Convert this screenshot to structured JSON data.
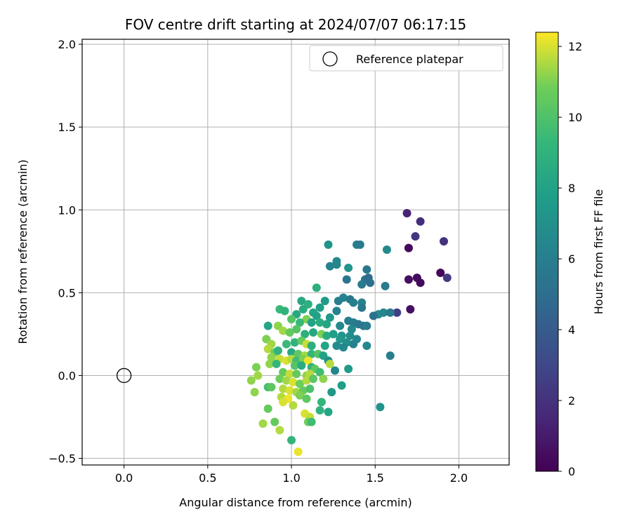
{
  "chart_data": {
    "type": "scatter",
    "title": "FOV centre drift starting at 2024/07/07 06:17:15",
    "xlabel": "Angular distance from reference (arcmin)",
    "ylabel": "Rotation from reference (arcmin)",
    "xlim": [
      -0.25,
      2.3
    ],
    "ylim": [
      -0.54,
      2.03
    ],
    "x_ticks": [
      0.0,
      0.5,
      1.0,
      1.5,
      2.0
    ],
    "x_tick_labels": [
      "0.0",
      "0.5",
      "1.0",
      "1.5",
      "2.0"
    ],
    "y_ticks": [
      -0.5,
      0.0,
      0.5,
      1.0,
      1.5,
      2.0
    ],
    "y_tick_labels": [
      "−0.5",
      "0.0",
      "0.5",
      "1.0",
      "1.5",
      "2.0"
    ],
    "grid": true,
    "legend": {
      "placement": "top-right",
      "entries": [
        "Reference platepar"
      ]
    },
    "reference_point": {
      "x": 0.0,
      "y": 0.0
    },
    "colorbar": {
      "label": "Hours from first FF file",
      "colormap": "viridis",
      "range": [
        0,
        12.4
      ],
      "ticks": [
        0,
        2,
        4,
        6,
        8,
        10,
        12
      ],
      "tick_labels": [
        "0",
        "2",
        "4",
        "6",
        "8",
        "10",
        "12"
      ]
    },
    "points": [
      {
        "x": 1.69,
        "y": 0.98,
        "c": 1.4
      },
      {
        "x": 1.77,
        "y": 0.93,
        "c": 1.8
      },
      {
        "x": 1.74,
        "y": 0.84,
        "c": 2.2
      },
      {
        "x": 1.91,
        "y": 0.81,
        "c": 2.0
      },
      {
        "x": 1.7,
        "y": 0.77,
        "c": 0.3
      },
      {
        "x": 1.93,
        "y": 0.59,
        "c": 2.4
      },
      {
        "x": 1.89,
        "y": 0.62,
        "c": 0.2
      },
      {
        "x": 1.75,
        "y": 0.59,
        "c": 0.4
      },
      {
        "x": 1.7,
        "y": 0.58,
        "c": 0.5
      },
      {
        "x": 1.77,
        "y": 0.56,
        "c": 0.3
      },
      {
        "x": 1.71,
        "y": 0.4,
        "c": 0.6
      },
      {
        "x": 1.63,
        "y": 0.38,
        "c": 2.6
      },
      {
        "x": 1.22,
        "y": 0.79,
        "c": 7.2
      },
      {
        "x": 1.39,
        "y": 0.79,
        "c": 6.0
      },
      {
        "x": 1.41,
        "y": 0.79,
        "c": 5.8
      },
      {
        "x": 1.57,
        "y": 0.76,
        "c": 6.6
      },
      {
        "x": 1.27,
        "y": 0.69,
        "c": 6.6
      },
      {
        "x": 1.23,
        "y": 0.66,
        "c": 6.2
      },
      {
        "x": 1.27,
        "y": 0.67,
        "c": 6.4
      },
      {
        "x": 1.34,
        "y": 0.65,
        "c": 7.2
      },
      {
        "x": 1.45,
        "y": 0.64,
        "c": 5.6
      },
      {
        "x": 1.44,
        "y": 0.58,
        "c": 5.2
      },
      {
        "x": 1.46,
        "y": 0.59,
        "c": 4.8
      },
      {
        "x": 1.33,
        "y": 0.58,
        "c": 5.4
      },
      {
        "x": 1.42,
        "y": 0.55,
        "c": 5.8
      },
      {
        "x": 1.47,
        "y": 0.56,
        "c": 5.2
      },
      {
        "x": 1.56,
        "y": 0.54,
        "c": 5.8
      },
      {
        "x": 1.15,
        "y": 0.53,
        "c": 8.8
      },
      {
        "x": 1.28,
        "y": 0.45,
        "c": 6.0
      },
      {
        "x": 1.31,
        "y": 0.47,
        "c": 6.2
      },
      {
        "x": 1.35,
        "y": 0.46,
        "c": 5.6
      },
      {
        "x": 1.42,
        "y": 0.44,
        "c": 6.2
      },
      {
        "x": 1.37,
        "y": 0.44,
        "c": 6.0
      },
      {
        "x": 1.2,
        "y": 0.45,
        "c": 7.6
      },
      {
        "x": 1.06,
        "y": 0.45,
        "c": 8.4
      },
      {
        "x": 1.1,
        "y": 0.43,
        "c": 8.8
      },
      {
        "x": 1.17,
        "y": 0.41,
        "c": 7.8
      },
      {
        "x": 0.93,
        "y": 0.4,
        "c": 9.4
      },
      {
        "x": 0.96,
        "y": 0.39,
        "c": 9.0
      },
      {
        "x": 1.03,
        "y": 0.37,
        "c": 8.4
      },
      {
        "x": 1.07,
        "y": 0.4,
        "c": 8.6
      },
      {
        "x": 1.13,
        "y": 0.38,
        "c": 8.2
      },
      {
        "x": 1.15,
        "y": 0.36,
        "c": 8.0
      },
      {
        "x": 1.23,
        "y": 0.35,
        "c": 7.6
      },
      {
        "x": 1.27,
        "y": 0.39,
        "c": 6.2
      },
      {
        "x": 1.42,
        "y": 0.41,
        "c": 5.6
      },
      {
        "x": 1.52,
        "y": 0.37,
        "c": 6.8
      },
      {
        "x": 1.55,
        "y": 0.38,
        "c": 6.4
      },
      {
        "x": 1.59,
        "y": 0.38,
        "c": 5.8
      },
      {
        "x": 1.0,
        "y": 0.34,
        "c": 10.2
      },
      {
        "x": 1.09,
        "y": 0.34,
        "c": 11.0
      },
      {
        "x": 1.05,
        "y": 0.32,
        "c": 9.4
      },
      {
        "x": 1.12,
        "y": 0.32,
        "c": 8.0
      },
      {
        "x": 1.17,
        "y": 0.32,
        "c": 8.6
      },
      {
        "x": 1.21,
        "y": 0.31,
        "c": 8.2
      },
      {
        "x": 1.29,
        "y": 0.3,
        "c": 6.6
      },
      {
        "x": 1.34,
        "y": 0.33,
        "c": 6.0
      },
      {
        "x": 1.37,
        "y": 0.32,
        "c": 5.8
      },
      {
        "x": 1.4,
        "y": 0.31,
        "c": 5.6
      },
      {
        "x": 1.43,
        "y": 0.3,
        "c": 5.4
      },
      {
        "x": 1.45,
        "y": 0.3,
        "c": 5.8
      },
      {
        "x": 0.86,
        "y": 0.3,
        "c": 8.2
      },
      {
        "x": 0.92,
        "y": 0.3,
        "c": 11.2
      },
      {
        "x": 0.95,
        "y": 0.27,
        "c": 11.4
      },
      {
        "x": 0.99,
        "y": 0.26,
        "c": 10.6
      },
      {
        "x": 1.03,
        "y": 0.28,
        "c": 10.2
      },
      {
        "x": 1.08,
        "y": 0.25,
        "c": 8.8
      },
      {
        "x": 1.13,
        "y": 0.26,
        "c": 8.4
      },
      {
        "x": 1.18,
        "y": 0.25,
        "c": 11.0
      },
      {
        "x": 1.21,
        "y": 0.24,
        "c": 8.6
      },
      {
        "x": 1.25,
        "y": 0.25,
        "c": 7.8
      },
      {
        "x": 1.3,
        "y": 0.24,
        "c": 7.2
      },
      {
        "x": 1.35,
        "y": 0.24,
        "c": 6.8
      },
      {
        "x": 1.39,
        "y": 0.22,
        "c": 6.4
      },
      {
        "x": 1.29,
        "y": 0.22,
        "c": 7.4
      },
      {
        "x": 1.33,
        "y": 0.2,
        "c": 7.0
      },
      {
        "x": 1.37,
        "y": 0.19,
        "c": 6.2
      },
      {
        "x": 1.27,
        "y": 0.18,
        "c": 6.8
      },
      {
        "x": 1.31,
        "y": 0.17,
        "c": 6.4
      },
      {
        "x": 1.45,
        "y": 0.18,
        "c": 6.6
      },
      {
        "x": 0.85,
        "y": 0.22,
        "c": 11.0
      },
      {
        "x": 0.88,
        "y": 0.19,
        "c": 11.4
      },
      {
        "x": 0.97,
        "y": 0.19,
        "c": 9.4
      },
      {
        "x": 1.02,
        "y": 0.2,
        "c": 9.0
      },
      {
        "x": 1.06,
        "y": 0.21,
        "c": 10.6
      },
      {
        "x": 1.09,
        "y": 0.19,
        "c": 11.8
      },
      {
        "x": 1.12,
        "y": 0.18,
        "c": 8.8
      },
      {
        "x": 1.2,
        "y": 0.18,
        "c": 8.2
      },
      {
        "x": 0.86,
        "y": 0.16,
        "c": 11.6
      },
      {
        "x": 0.9,
        "y": 0.14,
        "c": 10.8
      },
      {
        "x": 0.92,
        "y": 0.15,
        "c": 9.0
      },
      {
        "x": 1.0,
        "y": 0.14,
        "c": 8.4
      },
      {
        "x": 1.04,
        "y": 0.13,
        "c": 10.4
      },
      {
        "x": 1.08,
        "y": 0.12,
        "c": 11.4
      },
      {
        "x": 1.12,
        "y": 0.13,
        "c": 9.2
      },
      {
        "x": 1.16,
        "y": 0.13,
        "c": 10.2
      },
      {
        "x": 1.19,
        "y": 0.12,
        "c": 8.0
      },
      {
        "x": 0.88,
        "y": 0.11,
        "c": 11.2
      },
      {
        "x": 0.93,
        "y": 0.1,
        "c": 11.8
      },
      {
        "x": 0.97,
        "y": 0.09,
        "c": 12.0
      },
      {
        "x": 1.0,
        "y": 0.1,
        "c": 11.6
      },
      {
        "x": 1.03,
        "y": 0.09,
        "c": 9.6
      },
      {
        "x": 1.07,
        "y": 0.1,
        "c": 11.0
      },
      {
        "x": 1.1,
        "y": 0.09,
        "c": 12.2
      },
      {
        "x": 1.22,
        "y": 0.09,
        "c": 7.0
      },
      {
        "x": 1.23,
        "y": 0.07,
        "c": 11.6
      },
      {
        "x": 0.87,
        "y": 0.07,
        "c": 11.2
      },
      {
        "x": 0.91,
        "y": 0.07,
        "c": 9.2
      },
      {
        "x": 1.02,
        "y": 0.06,
        "c": 10.2
      },
      {
        "x": 1.06,
        "y": 0.06,
        "c": 8.6
      },
      {
        "x": 1.12,
        "y": 0.05,
        "c": 9.0
      },
      {
        "x": 1.14,
        "y": 0.04,
        "c": 10.4
      },
      {
        "x": 1.26,
        "y": 0.03,
        "c": 6.4
      },
      {
        "x": 1.34,
        "y": 0.04,
        "c": 7.6
      },
      {
        "x": 0.79,
        "y": 0.05,
        "c": 11.0
      },
      {
        "x": 0.8,
        "y": 0.0,
        "c": 11.4
      },
      {
        "x": 0.95,
        "y": 0.02,
        "c": 10.6
      },
      {
        "x": 0.99,
        "y": 0.01,
        "c": 11.8
      },
      {
        "x": 1.03,
        "y": 0.01,
        "c": 10.6
      },
      {
        "x": 1.09,
        "y": 0.0,
        "c": 11.2
      },
      {
        "x": 1.11,
        "y": 0.01,
        "c": 11.6
      },
      {
        "x": 1.17,
        "y": 0.02,
        "c": 9.6
      },
      {
        "x": 1.59,
        "y": 0.12,
        "c": 6.0
      },
      {
        "x": 0.76,
        "y": -0.03,
        "c": 11.2
      },
      {
        "x": 0.93,
        "y": -0.02,
        "c": 10.8
      },
      {
        "x": 0.97,
        "y": -0.03,
        "c": 11.4
      },
      {
        "x": 1.01,
        "y": -0.04,
        "c": 12.0
      },
      {
        "x": 1.05,
        "y": -0.05,
        "c": 10.8
      },
      {
        "x": 1.09,
        "y": -0.03,
        "c": 11.6
      },
      {
        "x": 1.13,
        "y": -0.02,
        "c": 10.4
      },
      {
        "x": 1.19,
        "y": -0.02,
        "c": 11.2
      },
      {
        "x": 0.86,
        "y": -0.07,
        "c": 9.8
      },
      {
        "x": 0.88,
        "y": -0.07,
        "c": 10.4
      },
      {
        "x": 0.78,
        "y": -0.1,
        "c": 11.2
      },
      {
        "x": 0.95,
        "y": -0.08,
        "c": 11.6
      },
      {
        "x": 0.99,
        "y": -0.09,
        "c": 12.0
      },
      {
        "x": 1.03,
        "y": -0.1,
        "c": 11.4
      },
      {
        "x": 1.07,
        "y": -0.09,
        "c": 10.6
      },
      {
        "x": 1.11,
        "y": -0.08,
        "c": 10.0
      },
      {
        "x": 1.3,
        "y": -0.06,
        "c": 7.8
      },
      {
        "x": 1.24,
        "y": -0.1,
        "c": 7.4
      },
      {
        "x": 0.94,
        "y": -0.13,
        "c": 11.6
      },
      {
        "x": 0.98,
        "y": -0.14,
        "c": 12.2
      },
      {
        "x": 1.05,
        "y": -0.12,
        "c": 11.0
      },
      {
        "x": 1.09,
        "y": -0.14,
        "c": 10.4
      },
      {
        "x": 0.95,
        "y": -0.16,
        "c": 12.0
      },
      {
        "x": 1.01,
        "y": -0.18,
        "c": 11.6
      },
      {
        "x": 1.18,
        "y": -0.16,
        "c": 9.2
      },
      {
        "x": 0.86,
        "y": -0.2,
        "c": 10.6
      },
      {
        "x": 1.17,
        "y": -0.21,
        "c": 9.0
      },
      {
        "x": 1.22,
        "y": -0.22,
        "c": 8.2
      },
      {
        "x": 1.53,
        "y": -0.19,
        "c": 7.2
      },
      {
        "x": 1.08,
        "y": -0.23,
        "c": 12.0
      },
      {
        "x": 1.11,
        "y": -0.25,
        "c": 11.8
      },
      {
        "x": 0.83,
        "y": -0.29,
        "c": 11.4
      },
      {
        "x": 0.9,
        "y": -0.28,
        "c": 10.6
      },
      {
        "x": 1.1,
        "y": -0.28,
        "c": 10.8
      },
      {
        "x": 1.12,
        "y": -0.28,
        "c": 9.6
      },
      {
        "x": 0.93,
        "y": -0.33,
        "c": 11.6
      },
      {
        "x": 1.0,
        "y": -0.39,
        "c": 9.2
      },
      {
        "x": 1.04,
        "y": -0.46,
        "c": 12.2
      },
      {
        "x": 1.49,
        "y": 0.36,
        "c": 5.2
      },
      {
        "x": 1.36,
        "y": 0.28,
        "c": 6.6
      }
    ]
  }
}
